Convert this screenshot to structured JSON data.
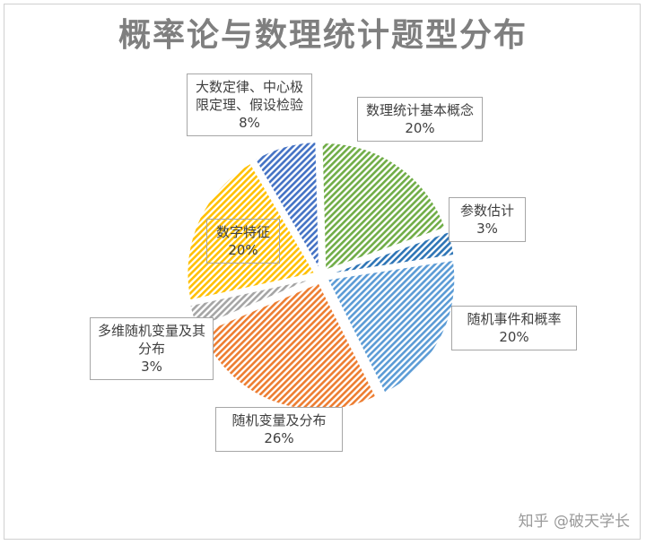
{
  "chart_data": {
    "type": "pie",
    "title": "概率论与数理统计题型分布",
    "slices": [
      {
        "label": "数理统计基本概念",
        "value": 20,
        "display": "20%",
        "color": "#70ad47"
      },
      {
        "label": "参数估计",
        "value": 3,
        "display": "3%",
        "color": "#2e75b6"
      },
      {
        "label": "随机事件和概率",
        "value": 20,
        "display": "20%",
        "color": "#5b9bd5"
      },
      {
        "label": "随机变量及分布",
        "value": 26,
        "display": "26%",
        "color": "#ed7d31"
      },
      {
        "label": "多维随机变量及其分布",
        "value": 3,
        "display": "3%",
        "color": "#a5a5a5"
      },
      {
        "label": "数字特征",
        "value": 20,
        "display": "20%",
        "color": "#ffc000"
      },
      {
        "label": "大数定律、中心极限定理、假设检验",
        "value": 8,
        "display": "8%",
        "color": "#4472c4"
      }
    ],
    "legend": "none"
  },
  "watermark": "知乎 @破天学长"
}
